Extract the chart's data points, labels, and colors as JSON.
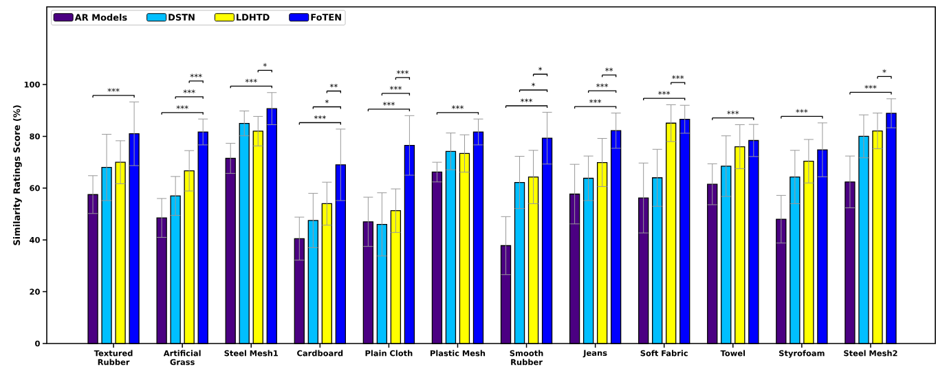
{
  "chart_data": {
    "type": "bar",
    "ylabel": "Similarity Ratings Score (%)",
    "categories": [
      "Textured Rubber",
      "Artificial Grass",
      "Steel Mesh1",
      "Cardboard",
      "Plain Cloth",
      "Plastic Mesh",
      "Smooth Rubber",
      "Jeans",
      "Soft Fabric",
      "Towel",
      "Styrofoam",
      "Steel Mesh2"
    ],
    "series": [
      {
        "name": "AR Models",
        "color": "#4b0082",
        "values": [
          57.5,
          48.5,
          71.5,
          40.5,
          47,
          66.2,
          37.8,
          57.7,
          56.2,
          61.5,
          48,
          62.4
        ],
        "errors": [
          7.3,
          7.5,
          5.8,
          8.3,
          9.5,
          3.8,
          11.2,
          11.5,
          13.5,
          7.9,
          9.2,
          10
        ]
      },
      {
        "name": "DSTN",
        "color": "#00bfff",
        "values": [
          68,
          57,
          85,
          47.5,
          46,
          74.2,
          62.2,
          63.8,
          64,
          68.5,
          64.3,
          80
        ],
        "errors": [
          12.8,
          7.5,
          4.8,
          10.5,
          12.2,
          7.1,
          10.1,
          8.6,
          11,
          11.7,
          10.3,
          8.3
        ]
      },
      {
        "name": "LDHTD",
        "color": "#ffff00",
        "values": [
          70,
          66.7,
          82,
          54,
          51.3,
          73.4,
          64.3,
          69.9,
          85.1,
          76,
          70.4,
          82.1
        ],
        "errors": [
          8.3,
          7.8,
          5.7,
          8.3,
          8.4,
          7.2,
          10.3,
          9.3,
          7.1,
          8.5,
          8.4,
          6.9
        ]
      },
      {
        "name": "FoTEN",
        "color": "#0000ff",
        "values": [
          81,
          81.7,
          90.7,
          69,
          76.5,
          81.7,
          79.3,
          82.2,
          86.6,
          78.4,
          74.8,
          88.9
        ],
        "errors": [
          12.3,
          5,
          6.2,
          13.8,
          11.5,
          5,
          10,
          6.8,
          5.4,
          6.2,
          10.4,
          5.6
        ]
      }
    ],
    "ylim": [
      0,
      130
    ],
    "yticks": [
      0,
      20,
      40,
      60,
      80,
      100
    ],
    "legend": "top left",
    "annotations": [
      "***",
      "***",
      "***",
      "***",
      "***",
      "*",
      "***",
      "*",
      "**",
      "***",
      "***",
      "***",
      "***",
      "***",
      "*",
      "*",
      "***",
      "***",
      "**",
      "***",
      "***",
      "***",
      "***",
      "***",
      "*"
    ]
  }
}
